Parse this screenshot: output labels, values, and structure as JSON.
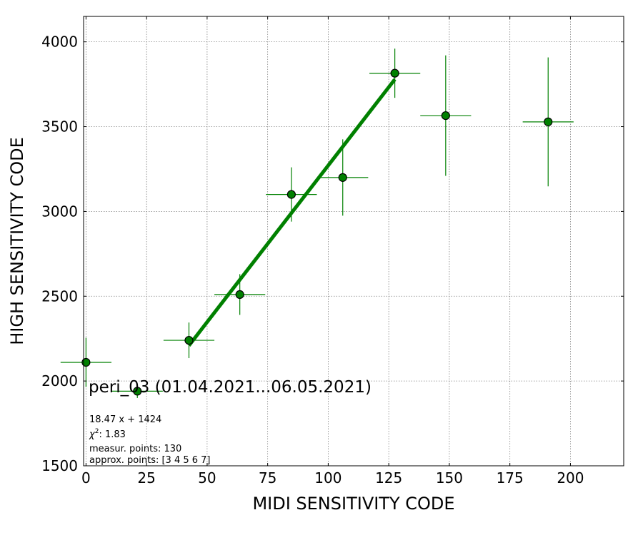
{
  "chart_data": {
    "type": "scatter",
    "xlabel": "MIDI SENSITIVITY CODE",
    "ylabel": "HIGH SENSITIVITY CODE",
    "xlim": [
      -1,
      222
    ],
    "ylim": [
      1500,
      4150
    ],
    "xticks": [
      0,
      25,
      50,
      75,
      100,
      125,
      150,
      175,
      200
    ],
    "yticks": [
      1500,
      2000,
      2500,
      3000,
      3500,
      4000
    ],
    "grid": true,
    "colors": {
      "marker_fill": "#008000",
      "marker_edge": "#000000",
      "errorbar": "#008000",
      "fit_line": "#008000",
      "grid": "#808080"
    },
    "points": [
      {
        "x": 0,
        "y": 2110,
        "xerr": 10.5,
        "yerr": 145
      },
      {
        "x": 21.2,
        "y": 1940,
        "xerr": 10.5,
        "yerr": 40
      },
      {
        "x": 42.5,
        "y": 2240,
        "xerr": 10.5,
        "yerr": 105
      },
      {
        "x": 63.5,
        "y": 2510,
        "xerr": 10.5,
        "yerr": 120
      },
      {
        "x": 84.8,
        "y": 3100,
        "xerr": 10.5,
        "yerr": 160
      },
      {
        "x": 106,
        "y": 3200,
        "xerr": 10.5,
        "yerr": 225
      },
      {
        "x": 127.5,
        "y": 3815,
        "xerr": 10.5,
        "yerr": 145
      },
      {
        "x": 148.5,
        "y": 3565,
        "xerr": 10.5,
        "yerr": 355
      },
      {
        "x": 190.8,
        "y": 3528,
        "xerr": 10.5,
        "yerr": 380
      }
    ],
    "fit": {
      "slope": 18.47,
      "intercept": 1424,
      "x_range": [
        42.5,
        127.5
      ]
    },
    "annotation": {
      "title": "peri_03 (01.04.2021...06.05.2021)",
      "equation": "18.47 x + 1424",
      "chi2_label": "χ",
      "chi2_exp": "2",
      "chi2_value": ": 1.83",
      "measur_points": "measur. points: 130",
      "approx_points": "approx. points: [3 4 5 6 7]"
    }
  }
}
